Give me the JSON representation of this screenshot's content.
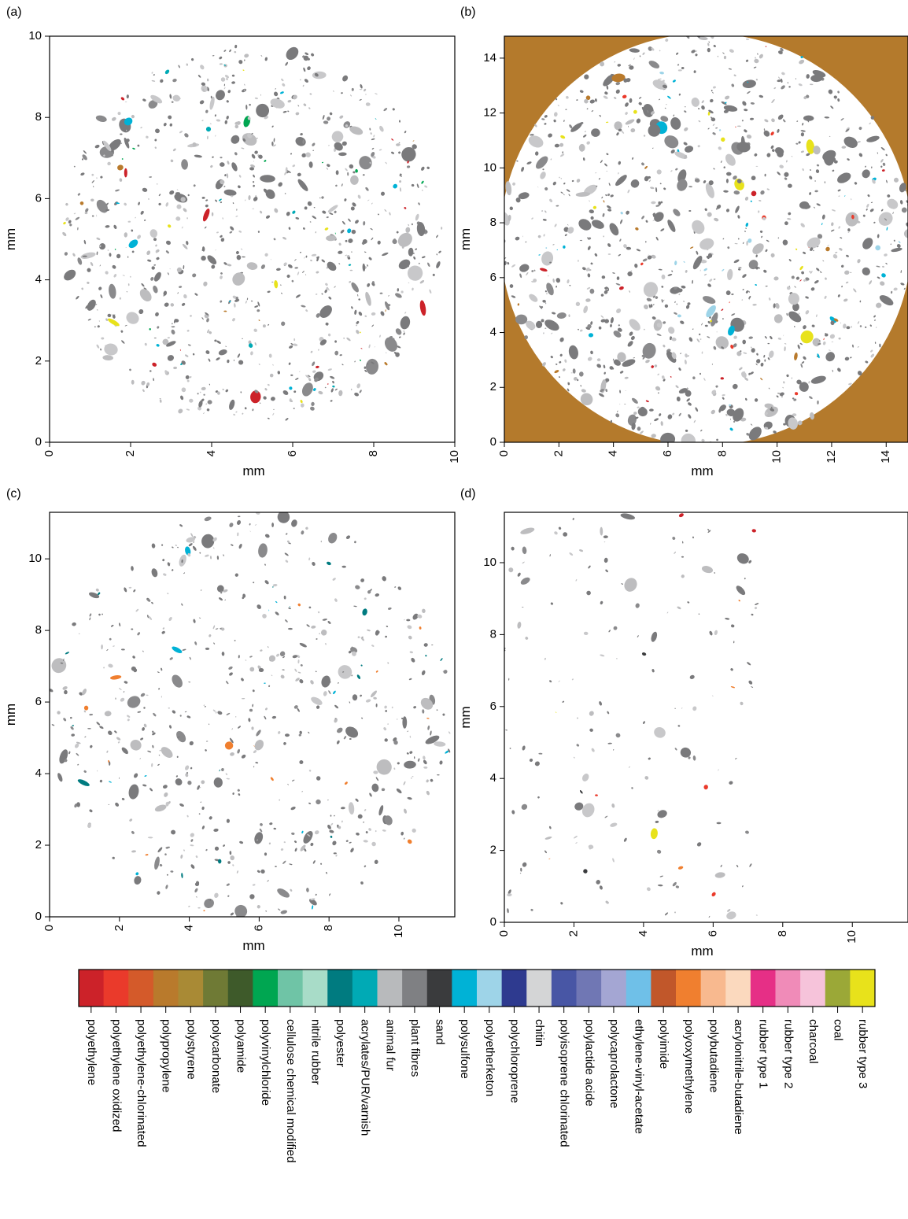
{
  "chart_data": [
    {
      "type": "particle-map",
      "panel_label": "(a)",
      "x_label": "mm",
      "y_label": "mm",
      "xlim": [
        0,
        10
      ],
      "ylim": [
        0,
        10
      ],
      "xticks": [
        0,
        2,
        4,
        6,
        8,
        10
      ],
      "yticks": [
        0,
        2,
        4,
        6,
        8,
        10
      ]
    },
    {
      "type": "particle-map",
      "panel_label": "(b)",
      "x_label": "mm",
      "y_label": "mm",
      "xlim": [
        0,
        14.8
      ],
      "ylim": [
        0,
        14.8
      ],
      "xticks": [
        0,
        2,
        4,
        6,
        8,
        10,
        12,
        14
      ],
      "yticks": [
        0,
        2,
        4,
        6,
        8,
        10,
        12,
        14
      ]
    },
    {
      "type": "particle-map",
      "panel_label": "(c)",
      "x_label": "mm",
      "y_label": "mm",
      "xlim": [
        0,
        11.6
      ],
      "ylim": [
        0,
        11.3
      ],
      "xticks": [
        0,
        2,
        4,
        6,
        8,
        10
      ],
      "yticks": [
        0,
        2,
        4,
        6,
        8,
        10
      ]
    },
    {
      "type": "particle-map",
      "panel_label": "(d)",
      "x_label": "mm",
      "y_label": "mm",
      "xlim": [
        0,
        11.6
      ],
      "ylim": [
        0,
        11.4
      ],
      "xticks": [
        0,
        2,
        4,
        6,
        8,
        10
      ],
      "yticks": [
        0,
        2,
        4,
        6,
        8,
        10
      ]
    }
  ],
  "legend": {
    "items": [
      {
        "name": "polyethylene",
        "color": "#cc2229"
      },
      {
        "name": "polyethylene oxidized",
        "color": "#ea3a2b"
      },
      {
        "name": "polyethylene-chlorinated",
        "color": "#d45a2a"
      },
      {
        "name": "polypropylene",
        "color": "#b97a2c"
      },
      {
        "name": "polystyrene",
        "color": "#a98a35"
      },
      {
        "name": "polycarbonate",
        "color": "#6f7a35"
      },
      {
        "name": "polyamide",
        "color": "#3e5a2a"
      },
      {
        "name": "polyvinylchloride",
        "color": "#00a651"
      },
      {
        "name": "cellulose chemical modified",
        "color": "#6fc4a6"
      },
      {
        "name": "nitrile rubber",
        "color": "#a8dcc8"
      },
      {
        "name": "polyester",
        "color": "#007b80"
      },
      {
        "name": "acrylates/PUR/varnish",
        "color": "#00aab5"
      },
      {
        "name": "animal fur",
        "color": "#b8babc"
      },
      {
        "name": "plant fibres",
        "color": "#7f8083"
      },
      {
        "name": "sand",
        "color": "#3a3b3d"
      },
      {
        "name": "polysulfone",
        "color": "#00b2d6"
      },
      {
        "name": "polyetherketon",
        "color": "#9ed4e8"
      },
      {
        "name": "polychloroprene",
        "color": "#2e3a8f"
      },
      {
        "name": "chitin",
        "color": "#d4d5d6"
      },
      {
        "name": "polyisoprene chlorinated",
        "color": "#4856a5"
      },
      {
        "name": "polylactide acide",
        "color": "#7077b4"
      },
      {
        "name": "polycaprolactone",
        "color": "#a4a6d3"
      },
      {
        "name": "ethylene-vinyl-acetate",
        "color": "#6fc0e8"
      },
      {
        "name": "polyimide",
        "color": "#c1572a"
      },
      {
        "name": "polyoxymethylene",
        "color": "#f07f2f"
      },
      {
        "name": "polybutadiene",
        "color": "#f8b98f"
      },
      {
        "name": "acrylonitrile-butadiene",
        "color": "#fbd9be"
      },
      {
        "name": "rubber type 1",
        "color": "#e62f86"
      },
      {
        "name": "rubber type 2",
        "color": "#f08bb8"
      },
      {
        "name": "charcoal",
        "color": "#f6c3da"
      },
      {
        "name": "coal",
        "color": "#9ba837"
      },
      {
        "name": "rubber type 3",
        "color": "#e8e21b"
      }
    ]
  }
}
